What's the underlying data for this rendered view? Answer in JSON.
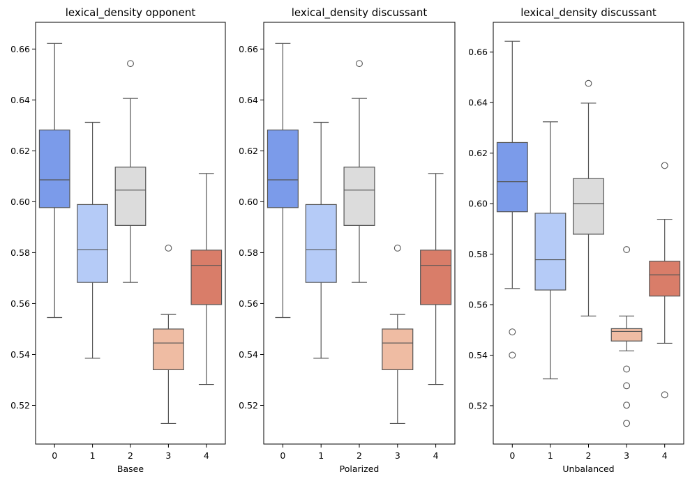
{
  "chart_data": [
    {
      "type": "box",
      "title": "lexical_density opponent",
      "xlabel": "Basee",
      "ylabel": "",
      "categories": [
        "0",
        "1",
        "2",
        "3",
        "4"
      ],
      "ylim": [
        0.5048,
        0.6705
      ],
      "yticks": [
        "0.52",
        "0.54",
        "0.56",
        "0.58",
        "0.60",
        "0.62",
        "0.64",
        "0.66"
      ],
      "boxes": [
        {
          "category": "0",
          "color": "#7b9bea",
          "whisker_low": 0.5545,
          "q1": 0.5977,
          "median": 0.6086,
          "q3": 0.6282,
          "whisker_high": 0.6622,
          "outliers": []
        },
        {
          "category": "1",
          "color": "#b5cbf7",
          "whisker_low": 0.5385,
          "q1": 0.5683,
          "median": 0.5812,
          "q3": 0.5989,
          "whisker_high": 0.6312,
          "outliers": []
        },
        {
          "category": "2",
          "color": "#dcdcdc",
          "whisker_low": 0.5683,
          "q1": 0.5907,
          "median": 0.6046,
          "q3": 0.6136,
          "whisker_high": 0.6406,
          "outliers": [
            0.6543
          ]
        },
        {
          "category": "3",
          "color": "#efbca3",
          "whisker_low": 0.5129,
          "q1": 0.534,
          "median": 0.5445,
          "q3": 0.55,
          "whisker_high": 0.5557,
          "outliers": [
            0.5818
          ]
        },
        {
          "category": "4",
          "color": "#d97d69",
          "whisker_low": 0.5282,
          "q1": 0.5596,
          "median": 0.575,
          "q3": 0.581,
          "whisker_high": 0.6111,
          "outliers": []
        }
      ]
    },
    {
      "type": "box",
      "title": "lexical_density discussant",
      "xlabel": "Polarized",
      "ylabel": "",
      "categories": [
        "0",
        "1",
        "2",
        "3",
        "4"
      ],
      "ylim": [
        0.5048,
        0.6705
      ],
      "yticks": [
        "0.52",
        "0.54",
        "0.56",
        "0.58",
        "0.60",
        "0.62",
        "0.64",
        "0.66"
      ],
      "boxes": [
        {
          "category": "0",
          "color": "#7b9bea",
          "whisker_low": 0.5545,
          "q1": 0.5977,
          "median": 0.6086,
          "q3": 0.6282,
          "whisker_high": 0.6622,
          "outliers": []
        },
        {
          "category": "1",
          "color": "#b5cbf7",
          "whisker_low": 0.5385,
          "q1": 0.5683,
          "median": 0.5812,
          "q3": 0.5989,
          "whisker_high": 0.6312,
          "outliers": []
        },
        {
          "category": "2",
          "color": "#dcdcdc",
          "whisker_low": 0.5683,
          "q1": 0.5907,
          "median": 0.6046,
          "q3": 0.6136,
          "whisker_high": 0.6406,
          "outliers": [
            0.6543
          ]
        },
        {
          "category": "3",
          "color": "#efbca3",
          "whisker_low": 0.5129,
          "q1": 0.534,
          "median": 0.5445,
          "q3": 0.55,
          "whisker_high": 0.5557,
          "outliers": [
            0.5818
          ]
        },
        {
          "category": "4",
          "color": "#d97d69",
          "whisker_low": 0.5282,
          "q1": 0.5596,
          "median": 0.575,
          "q3": 0.581,
          "whisker_high": 0.6111,
          "outliers": []
        }
      ]
    },
    {
      "type": "box",
      "title": "lexical_density discussant",
      "xlabel": "Unbalanced",
      "ylabel": "",
      "categories": [
        "0",
        "1",
        "2",
        "3",
        "4"
      ],
      "ylim": [
        0.5048,
        0.6718
      ],
      "yticks": [
        "0.52",
        "0.54",
        "0.56",
        "0.58",
        "0.60",
        "0.62",
        "0.64",
        "0.66"
      ],
      "boxes": [
        {
          "category": "0",
          "color": "#7b9bea",
          "whisker_low": 0.5664,
          "q1": 0.5968,
          "median": 0.6087,
          "q3": 0.6242,
          "whisker_high": 0.6643,
          "outliers": [
            0.5492,
            0.54
          ]
        },
        {
          "category": "1",
          "color": "#b5cbf7",
          "whisker_low": 0.5306,
          "q1": 0.5658,
          "median": 0.5778,
          "q3": 0.5962,
          "whisker_high": 0.6324,
          "outliers": []
        },
        {
          "category": "2",
          "color": "#dcdcdc",
          "whisker_low": 0.5555,
          "q1": 0.5879,
          "median": 0.6,
          "q3": 0.6099,
          "whisker_high": 0.6398,
          "outliers": [
            0.6476
          ]
        },
        {
          "category": "3",
          "color": "#efbca3",
          "whisker_low": 0.5417,
          "q1": 0.5456,
          "median": 0.5494,
          "q3": 0.5505,
          "whisker_high": 0.5555,
          "outliers": [
            0.5818,
            0.5345,
            0.5279,
            0.5202,
            0.513
          ]
        },
        {
          "category": "4",
          "color": "#d97d69",
          "whisker_low": 0.5447,
          "q1": 0.5634,
          "median": 0.5718,
          "q3": 0.5772,
          "whisker_high": 0.5938,
          "outliers": [
            0.6151,
            0.5243
          ]
        }
      ]
    }
  ]
}
